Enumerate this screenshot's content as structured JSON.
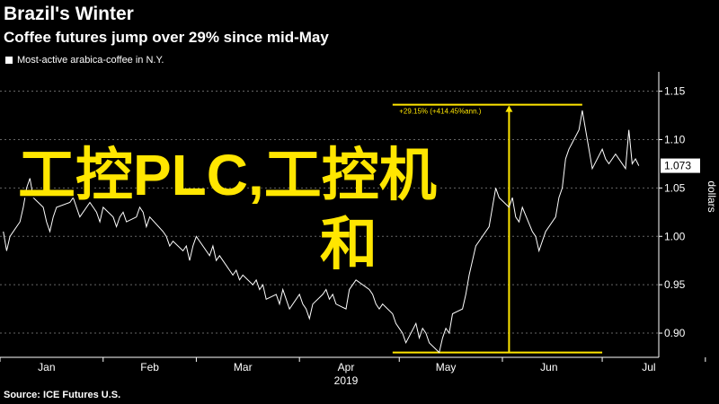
{
  "header": {
    "title": "Brazil's Winter",
    "subtitle": "Coffee futures jump over 29% since mid-May"
  },
  "legend": {
    "label": "Most-active arabica-coffee in N.Y."
  },
  "source": "Source: ICE Futures U.S.",
  "overlay": {
    "line1": "工控PLC,工控机",
    "line2": "和"
  },
  "colors": {
    "background": "#000000",
    "series": "#ffffff",
    "annotation": "#ffe600",
    "grid": "#666666"
  },
  "chart_data": {
    "type": "line",
    "title": "Brazil's Winter",
    "subtitle": "Coffee futures jump over 29% since mid-May",
    "ylabel": "dollars",
    "year_label": "2019",
    "x_tick_labels": [
      "Jan",
      "Feb",
      "Mar",
      "Apr",
      "May",
      "Jun",
      "Jul"
    ],
    "y_ticks": [
      0.9,
      0.95,
      1.0,
      1.05,
      1.1,
      1.15
    ],
    "y_tick_labels": [
      "0.90",
      "0.95",
      "1.00",
      "1.05",
      "1.10",
      "1.15"
    ],
    "ylim": [
      0.875,
      1.17
    ],
    "grid": "horizontal dashed",
    "last_value_label": "1.073",
    "series": [
      {
        "name": "Most-active arabica-coffee in N.Y.",
        "x": [
          "2019-01-02",
          "2019-01-03",
          "2019-01-04",
          "2019-01-07",
          "2019-01-08",
          "2019-01-09",
          "2019-01-10",
          "2019-01-11",
          "2019-01-14",
          "2019-01-15",
          "2019-01-16",
          "2019-01-17",
          "2019-01-18",
          "2019-01-22",
          "2019-01-23",
          "2019-01-24",
          "2019-01-25",
          "2019-01-28",
          "2019-01-29",
          "2019-01-30",
          "2019-01-31",
          "2019-02-01",
          "2019-02-04",
          "2019-02-05",
          "2019-02-06",
          "2019-02-07",
          "2019-02-08",
          "2019-02-11",
          "2019-02-12",
          "2019-02-13",
          "2019-02-14",
          "2019-02-15",
          "2019-02-19",
          "2019-02-20",
          "2019-02-21",
          "2019-02-22",
          "2019-02-25",
          "2019-02-26",
          "2019-02-27",
          "2019-02-28",
          "2019-03-01",
          "2019-03-04",
          "2019-03-05",
          "2019-03-06",
          "2019-03-07",
          "2019-03-08",
          "2019-03-11",
          "2019-03-12",
          "2019-03-13",
          "2019-03-14",
          "2019-03-15",
          "2019-03-18",
          "2019-03-19",
          "2019-03-20",
          "2019-03-21",
          "2019-03-22",
          "2019-03-25",
          "2019-03-26",
          "2019-03-27",
          "2019-03-28",
          "2019-03-29",
          "2019-04-01",
          "2019-04-02",
          "2019-04-03",
          "2019-04-04",
          "2019-04-05",
          "2019-04-08",
          "2019-04-09",
          "2019-04-10",
          "2019-04-11",
          "2019-04-12",
          "2019-04-15",
          "2019-04-16",
          "2019-04-17",
          "2019-04-18",
          "2019-04-22",
          "2019-04-23",
          "2019-04-24",
          "2019-04-25",
          "2019-04-26",
          "2019-04-29",
          "2019-04-30",
          "2019-05-01",
          "2019-05-02",
          "2019-05-03",
          "2019-05-06",
          "2019-05-07",
          "2019-05-08",
          "2019-05-09",
          "2019-05-10",
          "2019-05-13",
          "2019-05-14",
          "2019-05-15",
          "2019-05-16",
          "2019-05-17",
          "2019-05-20",
          "2019-05-21",
          "2019-05-22",
          "2019-05-23",
          "2019-05-24",
          "2019-05-28",
          "2019-05-29",
          "2019-05-30",
          "2019-05-31",
          "2019-06-03",
          "2019-06-04",
          "2019-06-05",
          "2019-06-06",
          "2019-06-07",
          "2019-06-10",
          "2019-06-11",
          "2019-06-12",
          "2019-06-13",
          "2019-06-14",
          "2019-06-17",
          "2019-06-18",
          "2019-06-19",
          "2019-06-20",
          "2019-06-21",
          "2019-06-24",
          "2019-06-25",
          "2019-06-26",
          "2019-06-27",
          "2019-06-28",
          "2019-07-01",
          "2019-07-02",
          "2019-07-03",
          "2019-07-05",
          "2019-07-08",
          "2019-07-09",
          "2019-07-10",
          "2019-07-11",
          "2019-07-12"
        ],
        "values": [
          1.005,
          0.985,
          1.0,
          1.015,
          1.03,
          1.05,
          1.06,
          1.04,
          1.03,
          1.015,
          1.005,
          1.02,
          1.03,
          1.035,
          1.04,
          1.03,
          1.02,
          1.035,
          1.03,
          1.025,
          1.015,
          1.03,
          1.02,
          1.01,
          1.02,
          1.025,
          1.015,
          1.02,
          1.03,
          1.025,
          1.01,
          1.02,
          1.005,
          1.0,
          0.99,
          0.995,
          0.985,
          0.99,
          0.975,
          0.99,
          1.0,
          0.985,
          0.98,
          0.99,
          0.975,
          0.98,
          0.965,
          0.96,
          0.965,
          0.955,
          0.96,
          0.95,
          0.955,
          0.945,
          0.95,
          0.935,
          0.94,
          0.93,
          0.945,
          0.935,
          0.925,
          0.94,
          0.93,
          0.925,
          0.915,
          0.93,
          0.94,
          0.945,
          0.935,
          0.94,
          0.93,
          0.925,
          0.945,
          0.95,
          0.955,
          0.945,
          0.94,
          0.93,
          0.925,
          0.93,
          0.92,
          0.91,
          0.905,
          0.9,
          0.89,
          0.91,
          0.895,
          0.905,
          0.9,
          0.89,
          0.88,
          0.895,
          0.905,
          0.9,
          0.92,
          0.925,
          0.94,
          0.96,
          0.975,
          0.99,
          1.01,
          1.03,
          1.05,
          1.04,
          1.03,
          1.04,
          1.02,
          1.015,
          1.03,
          1.005,
          1.0,
          0.985,
          0.995,
          1.005,
          1.02,
          1.04,
          1.05,
          1.08,
          1.09,
          1.11,
          1.13,
          1.11,
          1.09,
          1.07,
          1.09,
          1.08,
          1.075,
          1.085,
          1.07,
          1.11,
          1.075,
          1.08,
          1.073
        ]
      }
    ],
    "annotation": {
      "label": "+29.15% (+414.45%ann.)",
      "low_date": "2019-05-13",
      "low_value": 0.88,
      "high_date": "2019-06-25",
      "high_value": 1.136
    }
  }
}
